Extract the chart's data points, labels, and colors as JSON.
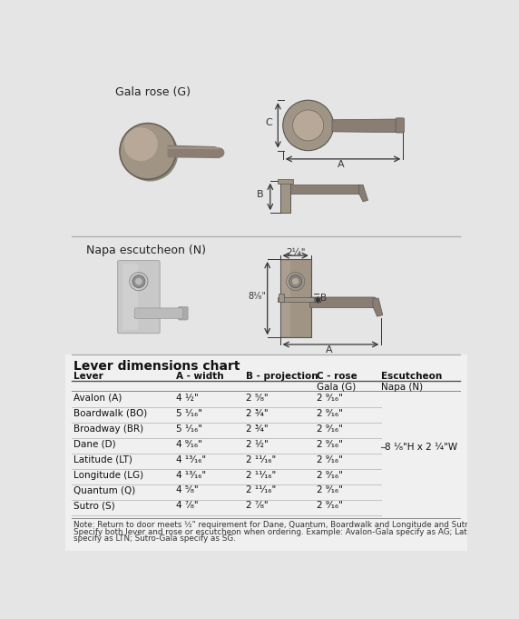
{
  "bg_color": "#e5e5e5",
  "title": "Lever dimensions chart",
  "section1_label": "Gala rose (G)",
  "section2_label": "Napa escutcheon (N)",
  "col_headers": [
    "Lever",
    "A - width",
    "B - projection",
    "C - rose",
    "Escutcheon"
  ],
  "sub_headers": [
    "",
    "",
    "",
    "Gala (G)",
    "Napa (N)"
  ],
  "rows": [
    [
      "Avalon (A)",
      "4 ½\"",
      "2 ⁵⁄₈\"",
      "2 ⁹⁄₁₆\"",
      ""
    ],
    [
      "Boardwalk (BO)",
      "5 ¹⁄₁₆\"",
      "2 ¾\"",
      "2 ⁹⁄₁₆\"",
      ""
    ],
    [
      "Broadway (BR)",
      "5 ¹⁄₁₆\"",
      "2 ¾\"",
      "2 ⁹⁄₁₆\"",
      ""
    ],
    [
      "Dane (D)",
      "4 ⁹⁄₁₆\"",
      "2 ½\"",
      "2 ⁹⁄₁₆\"",
      ""
    ],
    [
      "Latitude (LT)",
      "4 ¹³⁄₁₆\"",
      "2 ¹¹⁄₁₆\"",
      "2 ⁹⁄₁₆\"",
      ""
    ],
    [
      "Longitude (LG)",
      "4 ¹³⁄₁₆\"",
      "2 ¹¹⁄₁₆\"",
      "2 ⁹⁄₁₆\"",
      ""
    ],
    [
      "Quantum (Q)",
      "4 ⁵⁄₈\"",
      "2 ¹¹⁄₁₆\"",
      "2 ⁹⁄₁₆\"",
      ""
    ],
    [
      "Sutro (S)",
      "4 ⁷⁄₈\"",
      "2 ⁷⁄₈\"",
      "2 ⁹⁄₁₆\"",
      ""
    ]
  ],
  "escutcheon_note": "8 ¹⁄₈\"H x 2 ¼\"W",
  "note_text": "Note: Return to door meets ½\" requirement for Dane, Quantum, Boardwalk and Longitude and Sutro levers.\n        Specify both lever and rose or escutcheon when ordering. Example: Avalon-Gala specify as AG; Latitude-Napa\n        specify as LTN; Sutro-Gala specify as SG.",
  "rose_color": "#a09585",
  "rose_highlight": "#b8a898",
  "lever_color": "#8a7d72",
  "plate_color": "#c8c0b8",
  "dark_line": "#444444",
  "mid_line": "#777777",
  "dim_color": "#333333"
}
